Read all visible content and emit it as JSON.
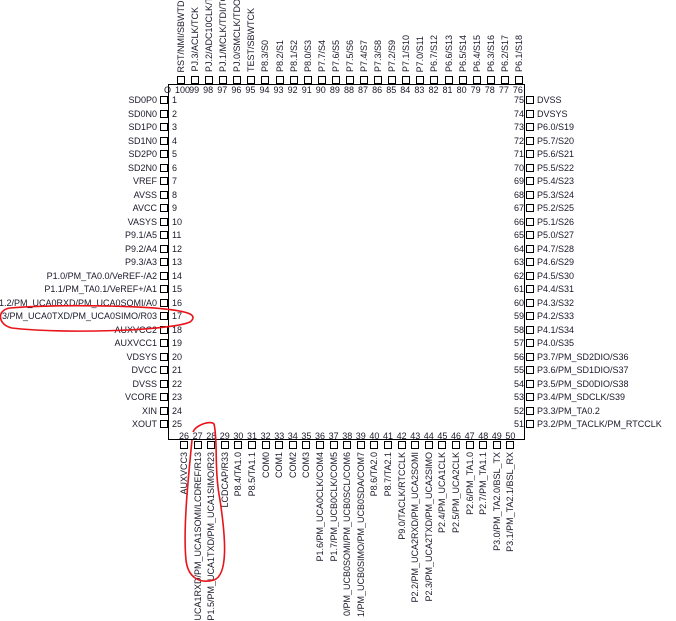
{
  "pin1_marker": "O",
  "annotation_color": "#e8141a",
  "left_pins": [
    {
      "num": "1",
      "label": "SD0P0"
    },
    {
      "num": "2",
      "label": "SD0N0"
    },
    {
      "num": "3",
      "label": "SD1P0"
    },
    {
      "num": "4",
      "label": "SD1N0"
    },
    {
      "num": "5",
      "label": "SD2P0"
    },
    {
      "num": "6",
      "label": "SD2N0"
    },
    {
      "num": "7",
      "label": "VREF"
    },
    {
      "num": "8",
      "label": "AVSS"
    },
    {
      "num": "9",
      "label": "AVCC"
    },
    {
      "num": "10",
      "label": "VASYS"
    },
    {
      "num": "11",
      "label": "P9.1/A5"
    },
    {
      "num": "12",
      "label": "P9.2/A4"
    },
    {
      "num": "13",
      "label": "P9.3/A3"
    },
    {
      "num": "14",
      "label": "P1.0/PM_TA0.0/VeREF-/A2"
    },
    {
      "num": "15",
      "label": "P1.1/PM_TA0.1/VeREF+/A1"
    },
    {
      "num": "16",
      "label": "1.2/PM_UCA0RXD/PM_UCA0SOMI/A0"
    },
    {
      "num": "17",
      "label": ".3/PM_UCA0TXD/PM_UCA0SIMO/R03"
    },
    {
      "num": "18",
      "label": "AUXVCC2"
    },
    {
      "num": "19",
      "label": "AUXVCC1"
    },
    {
      "num": "20",
      "label": "VDSYS"
    },
    {
      "num": "21",
      "label": "DVCC"
    },
    {
      "num": "22",
      "label": "DVSS"
    },
    {
      "num": "23",
      "label": "VCORE"
    },
    {
      "num": "24",
      "label": "XIN"
    },
    {
      "num": "25",
      "label": "XOUT"
    }
  ],
  "bottom_pins": [
    {
      "num": "26",
      "label": "AUXVCC3"
    },
    {
      "num": "27",
      "label": "UCA1RXD/PM_UCA1SOMI/LCDREF/R13"
    },
    {
      "num": "28",
      "label": "P1.5/PM_UCA1TXD/PM_UCA1SIMO/R23"
    },
    {
      "num": "29",
      "label": "LCDCAP/R33"
    },
    {
      "num": "30",
      "label": "P8.4/TA1.0"
    },
    {
      "num": "31",
      "label": "P8.5/TA1.1"
    },
    {
      "num": "32",
      "label": "COM0"
    },
    {
      "num": "33",
      "label": "COM1"
    },
    {
      "num": "34",
      "label": "COM2"
    },
    {
      "num": "35",
      "label": "COM3"
    },
    {
      "num": "36",
      "label": "P1.6/PM_UCA0CLK/COM4"
    },
    {
      "num": "37",
      "label": "P1.7/PM_UCB0CLK/COM5"
    },
    {
      "num": "38",
      "label": "0/PM_UCB0SOMI/PM_UCB0SCL/COM6"
    },
    {
      "num": "39",
      "label": "1/PM_UCB0SIMO/PM_UCB0SDA/COM7"
    },
    {
      "num": "40",
      "label": "P8.6/TA2.0"
    },
    {
      "num": "41",
      "label": "P8.7/TA2.1"
    },
    {
      "num": "42",
      "label": "P9.0/TACLK/RTCCLK"
    },
    {
      "num": "43",
      "label": "P2.2/PM_UCA2RXD/PM_UCA2SOMI"
    },
    {
      "num": "44",
      "label": "P2.3/PM_UCA2TXD/PM_UCA2SIMO"
    },
    {
      "num": "45",
      "label": "P2.4/PM_UCA1CLK"
    },
    {
      "num": "46",
      "label": "P2.5/PM_UCA2CLK"
    },
    {
      "num": "47",
      "label": "P2.6/PM_TA1.0"
    },
    {
      "num": "48",
      "label": "P2.7/PM_TA1.1"
    },
    {
      "num": "49",
      "label": "P3.0/PM_TA2.0/BSL_TX"
    },
    {
      "num": "50",
      "label": "P3.1/PM_TA2.1/BSL_RX"
    }
  ],
  "right_pins": [
    {
      "num": "75",
      "label": "DVSS"
    },
    {
      "num": "74",
      "label": "DVSYS"
    },
    {
      "num": "73",
      "label": "P6.0/S19"
    },
    {
      "num": "72",
      "label": "P5.7/S20"
    },
    {
      "num": "71",
      "label": "P5.6/S21"
    },
    {
      "num": "70",
      "label": "P5.5/S22"
    },
    {
      "num": "69",
      "label": "P5.4/S23"
    },
    {
      "num": "68",
      "label": "P5.3/S24"
    },
    {
      "num": "67",
      "label": "P5.2/S25"
    },
    {
      "num": "66",
      "label": "P5.1/S26"
    },
    {
      "num": "65",
      "label": "P5.0/S27"
    },
    {
      "num": "64",
      "label": "P4.7/S28"
    },
    {
      "num": "63",
      "label": "P4.6/S29"
    },
    {
      "num": "62",
      "label": "P4.5/S30"
    },
    {
      "num": "61",
      "label": "P4.4/S31"
    },
    {
      "num": "60",
      "label": "P4.3/S32"
    },
    {
      "num": "59",
      "label": "P4.2/S33"
    },
    {
      "num": "58",
      "label": "P4.1/S34"
    },
    {
      "num": "57",
      "label": "P4.0/S35"
    },
    {
      "num": "56",
      "label": "P3.7/PM_SD2DIO/S36"
    },
    {
      "num": "55",
      "label": "P3.6/PM_SD1DIO/S37"
    },
    {
      "num": "54",
      "label": "P3.5/PM_SD0DIO/S38"
    },
    {
      "num": "53",
      "label": "P3.4/PM_SDCLK/S39"
    },
    {
      "num": "52",
      "label": "P3.3/PM_TA0.2"
    },
    {
      "num": "51",
      "label": "P3.2/PM_TACLK/PM_RTCCLK"
    }
  ],
  "top_pins": [
    {
      "num": "100",
      "label": "RST/NMI/SBWTDI"
    },
    {
      "num": "99",
      "label": "PJ.3/ACLK/TCK"
    },
    {
      "num": "98",
      "label": "PJ.2/ADC10CLK/T"
    },
    {
      "num": "97",
      "label": "PJ.1/MCLK/TDI/TC"
    },
    {
      "num": "96",
      "label": "PJ.0/SMCLK/TDO"
    },
    {
      "num": "95",
      "label": "TEST/SBWTCK"
    },
    {
      "num": "94",
      "label": "P8.3/S0"
    },
    {
      "num": "93",
      "label": "P8.2/S1"
    },
    {
      "num": "92",
      "label": "P8.1/S2"
    },
    {
      "num": "91",
      "label": "P8.0/S3"
    },
    {
      "num": "90",
      "label": "P7.7/S4"
    },
    {
      "num": "89",
      "label": "P7.6/S5"
    },
    {
      "num": "88",
      "label": "P7.5/S6"
    },
    {
      "num": "87",
      "label": "P7.4/S7"
    },
    {
      "num": "86",
      "label": "P7.3/S8"
    },
    {
      "num": "85",
      "label": "P7.2/S9"
    },
    {
      "num": "84",
      "label": "P7.1/S10"
    },
    {
      "num": "83",
      "label": "P7.0/S11"
    },
    {
      "num": "82",
      "label": "P6.7/S12"
    },
    {
      "num": "81",
      "label": "P6.6/S13"
    },
    {
      "num": "80",
      "label": "P6.5/S14"
    },
    {
      "num": "79",
      "label": "P6.4/S15"
    },
    {
      "num": "78",
      "label": "P6.3/S16"
    },
    {
      "num": "77",
      "label": "P6.2/S17"
    },
    {
      "num": "76",
      "label": "P6.1/S18"
    }
  ]
}
